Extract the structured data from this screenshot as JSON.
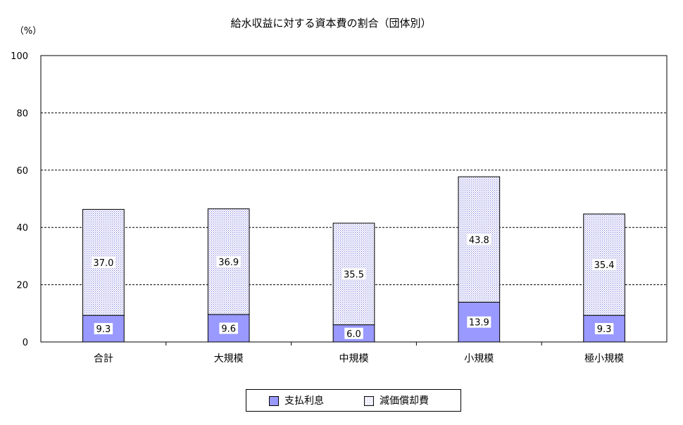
{
  "chart_data": {
    "type": "bar",
    "stacked": true,
    "title": "給水収益に対する資本費の割合（団体別）",
    "unit_label": "（%）",
    "categories": [
      "合計",
      "大規模",
      "中規模",
      "小規模",
      "極小規模"
    ],
    "series": [
      {
        "name": "支払利息",
        "values": [
          9.3,
          9.6,
          6.0,
          13.9,
          9.3
        ],
        "value_labels": [
          "9.3",
          "9.6",
          "6.0",
          "13.9",
          "9.3"
        ],
        "color": "#9999ff",
        "pattern": "solid"
      },
      {
        "name": "減価償却費",
        "values": [
          37.0,
          36.9,
          35.5,
          43.8,
          35.4
        ],
        "value_labels": [
          "37.0",
          "36.9",
          "35.5",
          "43.8",
          "35.4"
        ],
        "color": "#9999ff",
        "pattern": "dotted"
      }
    ],
    "ylim": [
      0,
      100
    ],
    "yticks": [
      "0",
      "20",
      "40",
      "60",
      "80",
      "100"
    ],
    "grid": true,
    "legend_position": "bottom"
  }
}
